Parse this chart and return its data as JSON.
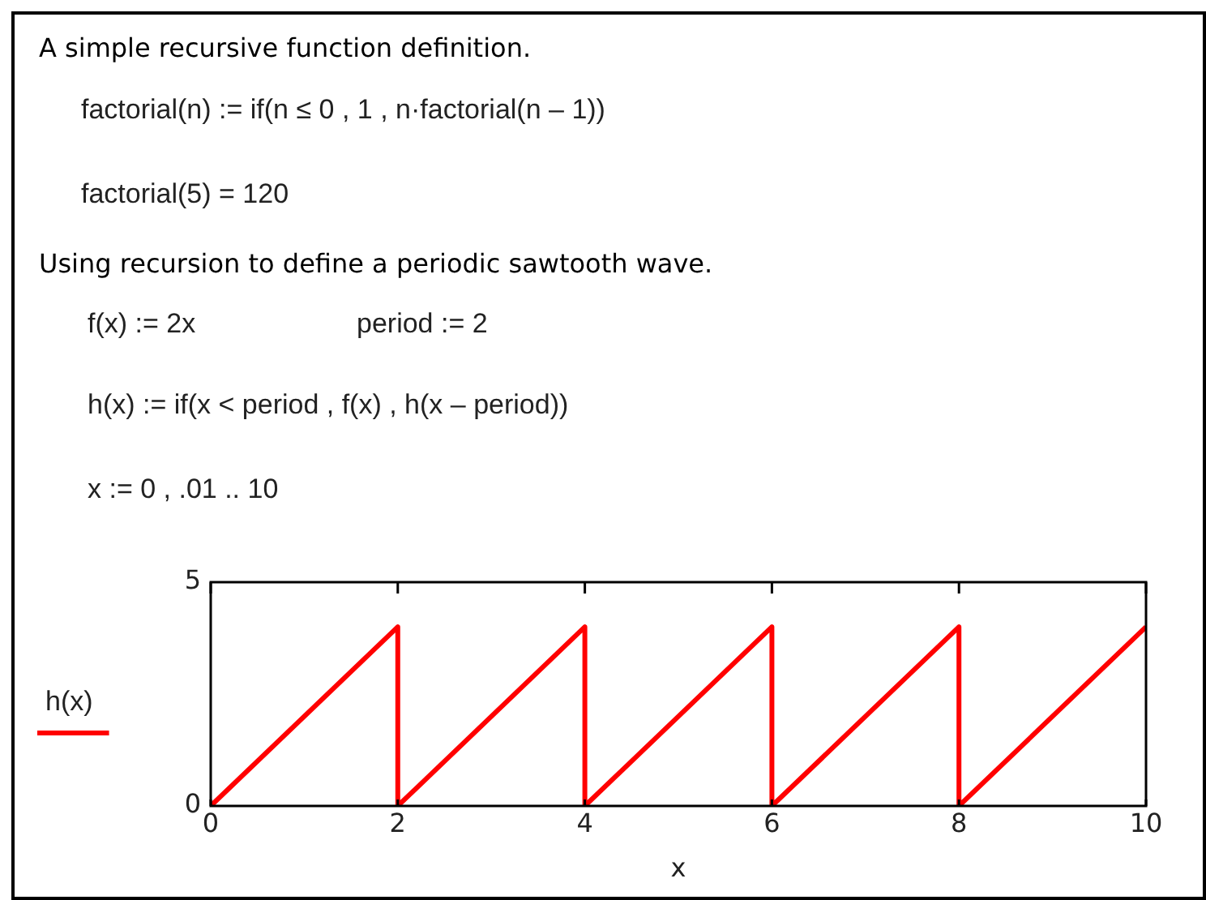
{
  "chart_data": {
    "type": "line",
    "title": "A simple recursive function definition.",
    "subtitle": "Using recursion to define a periodic sawtooth wave.",
    "annotations": [
      "factorial(n) := if(n ≤ 0 , 1 , n·factorial(n – 1))",
      "factorial(5) = 120",
      "f(x) := 2x",
      "period := 2",
      "h(x) := if(x < period , f(x) , h(x – period))",
      "x := 0 , .01 ..  10"
    ],
    "xlabel": "x",
    "series": [
      {
        "name": "h(x)",
        "color": "#ff0000",
        "x": [
          0,
          2,
          2,
          4,
          4,
          6,
          6,
          8,
          8,
          10
        ],
        "values": [
          0,
          4,
          0,
          4,
          0,
          4,
          0,
          4,
          0,
          4
        ]
      }
    ],
    "xlim": [
      0,
      10
    ],
    "xticks": [
      0,
      2,
      4,
      6,
      8,
      10
    ],
    "ylim": [
      0,
      5
    ],
    "yticks": [
      0,
      5
    ],
    "grid": false,
    "legend": "left",
    "marker": "none",
    "line_style": "solid"
  }
}
